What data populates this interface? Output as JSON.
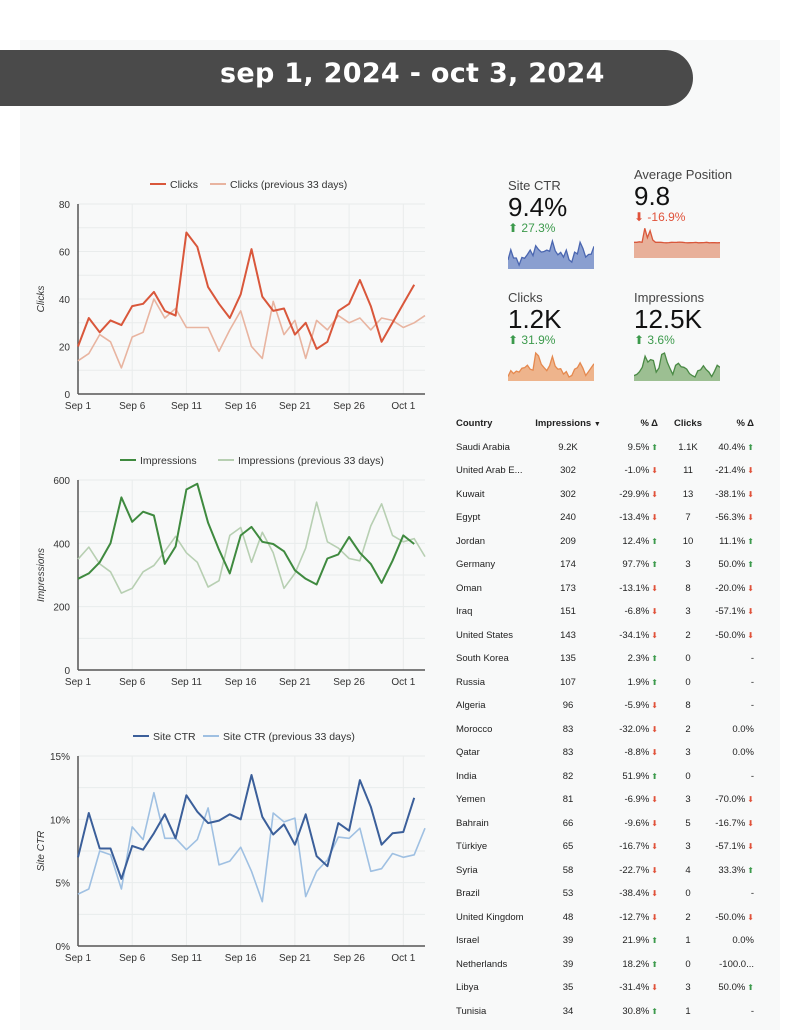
{
  "header": {
    "title": "sep 1, 2024 - oct 3, 2024"
  },
  "colors": {
    "clicks": "#d9573b",
    "clicks_prev": "#e8b4a0",
    "impressions": "#3f8a3f",
    "impressions_prev": "#b7cfb2",
    "ctr": "#3b5f9a",
    "ctr_prev": "#9fc0e2",
    "up": "#3c9a4c",
    "down": "#e0523a"
  },
  "scorecards": [
    {
      "label": "Site CTR",
      "value": "9.4%",
      "delta": "27.3%",
      "dir": "up",
      "line": "#4a66b0",
      "fill": "#8a9fd0"
    },
    {
      "label": "Average Position",
      "value": "9.8",
      "delta": "-16.9%",
      "dir": "down",
      "line": "#d9573b",
      "fill": "#e8b09a",
      "spark": [
        10,
        10,
        10.5,
        10,
        22,
        14,
        20,
        12,
        10,
        10,
        10,
        9.8,
        9.6,
        9.8,
        10,
        9.9,
        10,
        10.2,
        10,
        9.8,
        9.6,
        9.7,
        9.8,
        9.9,
        9.6,
        9.7,
        9.8,
        10,
        9.6,
        9.8,
        9.7,
        9.6,
        9.7
      ]
    },
    {
      "label": "Clicks",
      "value": "1.2K",
      "delta": "31.9%",
      "dir": "up",
      "line": "#e5894f",
      "fill": "#eeb48c"
    },
    {
      "label": "Impressions",
      "value": "12.5K",
      "delta": "3.6%",
      "dir": "up",
      "line": "#4a8a45",
      "fill": "#9cbf92"
    }
  ],
  "chart_data": [
    {
      "type": "line",
      "ylabel": "Clicks",
      "ylim": [
        0,
        80
      ],
      "yticks": [
        "0",
        "20",
        "40",
        "60",
        "80"
      ],
      "xticks": [
        "Sep 1",
        "Sep 6",
        "Sep 11",
        "Sep 16",
        "Sep 21",
        "Sep 26",
        "Oct 1"
      ],
      "x_start": "2024-09-01",
      "x_end": "2024-10-03",
      "grid": true,
      "legend": "top",
      "series": [
        {
          "name": "Clicks",
          "values": [
            20,
            32,
            26,
            31,
            29,
            37,
            38,
            43,
            35,
            33,
            68,
            62,
            45,
            38,
            32,
            42,
            61,
            41,
            35,
            36,
            25,
            30,
            19,
            22,
            35,
            38,
            48,
            37,
            22,
            30,
            38,
            46
          ]
        },
        {
          "name": "Clicks (previous 33 days)",
          "values": [
            14,
            17,
            25,
            22,
            11,
            24,
            26,
            40,
            32,
            36,
            28,
            28,
            28,
            18,
            27,
            35,
            20,
            15,
            39,
            25,
            31,
            15,
            31,
            27,
            33,
            30,
            32,
            27,
            32,
            31,
            28,
            30,
            33
          ]
        }
      ]
    },
    {
      "type": "line",
      "ylabel": "Impressions",
      "ylim": [
        0,
        600
      ],
      "yticks": [
        "0",
        "200",
        "400",
        "600"
      ],
      "xticks": [
        "Sep 1",
        "Sep 6",
        "Sep 11",
        "Sep 16",
        "Sep 21",
        "Sep 26",
        "Oct 1"
      ],
      "x_start": "2024-09-01",
      "x_end": "2024-10-03",
      "grid": true,
      "legend": "top",
      "series": [
        {
          "name": "Impressions",
          "values": [
            288,
            305,
            340,
            400,
            545,
            468,
            500,
            488,
            335,
            390,
            570,
            588,
            465,
            380,
            305,
            425,
            452,
            405,
            398,
            375,
            315,
            288,
            270,
            352,
            365,
            420,
            370,
            335,
            275,
            345,
            425,
            398
          ]
        },
        {
          "name": "Impressions (previous 33 days)",
          "values": [
            350,
            388,
            335,
            310,
            243,
            258,
            310,
            330,
            375,
            422,
            370,
            340,
            262,
            282,
            425,
            450,
            340,
            435,
            370,
            258,
            305,
            385,
            530,
            405,
            385,
            352,
            345,
            455,
            525,
            425,
            405,
            415,
            358
          ]
        }
      ]
    },
    {
      "type": "line",
      "ylabel": "Site CTR",
      "ylim": [
        0,
        15
      ],
      "yticks": [
        "0%",
        "5%",
        "10%",
        "15%"
      ],
      "xticks": [
        "Sep 1",
        "Sep 6",
        "Sep 11",
        "Sep 16",
        "Sep 21",
        "Sep 26",
        "Oct 1"
      ],
      "x_start": "2024-09-01",
      "x_end": "2024-10-03",
      "grid": true,
      "legend": "top",
      "series": [
        {
          "name": "Site CTR",
          "values": [
            7.0,
            10.5,
            7.7,
            7.7,
            5.3,
            7.9,
            7.6,
            8.9,
            10.4,
            8.5,
            11.9,
            10.6,
            9.7,
            9.9,
            10.4,
            10.0,
            13.5,
            10.2,
            8.8,
            9.6,
            8.0,
            10.4,
            7.1,
            6.3,
            9.7,
            9.1,
            13.1,
            11.0,
            8.0,
            8.9,
            9.0,
            11.7
          ]
        },
        {
          "name": "Site CTR (previous 33 days)",
          "values": [
            4.1,
            4.5,
            7.5,
            7.2,
            4.5,
            9.4,
            8.4,
            12.1,
            8.5,
            8.5,
            7.6,
            8.4,
            10.9,
            6.4,
            6.7,
            7.8,
            5.9,
            3.5,
            10.5,
            9.8,
            10.1,
            3.9,
            5.9,
            6.8,
            8.6,
            8.5,
            9.3,
            5.9,
            6.1,
            7.3,
            7.0,
            7.2,
            9.3
          ]
        }
      ]
    }
  ],
  "table": {
    "headers": [
      "Country",
      "Impressions",
      "% Δ",
      "Clicks",
      "% Δ"
    ],
    "sort_icon": "sort-desc-icon",
    "rows": [
      [
        "Saudi Arabia",
        "9.2K",
        "9.5%",
        "up",
        "1.1K",
        "40.4%",
        "up"
      ],
      [
        "United Arab E...",
        "302",
        "-1.0%",
        "down",
        "11",
        "-21.4%",
        "down"
      ],
      [
        "Kuwait",
        "302",
        "-29.9%",
        "down",
        "13",
        "-38.1%",
        "down"
      ],
      [
        "Egypt",
        "240",
        "-13.4%",
        "down",
        "7",
        "-56.3%",
        "down"
      ],
      [
        "Jordan",
        "209",
        "12.4%",
        "up",
        "10",
        "11.1%",
        "up"
      ],
      [
        "Germany",
        "174",
        "97.7%",
        "up",
        "3",
        "50.0%",
        "up"
      ],
      [
        "Oman",
        "173",
        "-13.1%",
        "down",
        "8",
        "-20.0%",
        "down"
      ],
      [
        "Iraq",
        "151",
        "-6.8%",
        "down",
        "3",
        "-57.1%",
        "down"
      ],
      [
        "United States",
        "143",
        "-34.1%",
        "down",
        "2",
        "-50.0%",
        "down"
      ],
      [
        "South Korea",
        "135",
        "2.3%",
        "up",
        "0",
        "-",
        ""
      ],
      [
        "Russia",
        "107",
        "1.9%",
        "up",
        "0",
        "-",
        ""
      ],
      [
        "Algeria",
        "96",
        "-5.9%",
        "down",
        "8",
        "-",
        ""
      ],
      [
        "Morocco",
        "83",
        "-32.0%",
        "down",
        "2",
        "0.0%",
        ""
      ],
      [
        "Qatar",
        "83",
        "-8.8%",
        "down",
        "3",
        "0.0%",
        ""
      ],
      [
        "India",
        "82",
        "51.9%",
        "up",
        "0",
        "-",
        ""
      ],
      [
        "Yemen",
        "81",
        "-6.9%",
        "down",
        "3",
        "-70.0%",
        "down"
      ],
      [
        "Bahrain",
        "66",
        "-9.6%",
        "down",
        "5",
        "-16.7%",
        "down"
      ],
      [
        "Türkiye",
        "65",
        "-16.7%",
        "down",
        "3",
        "-57.1%",
        "down"
      ],
      [
        "Syria",
        "58",
        "-22.7%",
        "down",
        "4",
        "33.3%",
        "up"
      ],
      [
        "Brazil",
        "53",
        "-38.4%",
        "down",
        "0",
        "-",
        ""
      ],
      [
        "United Kingdom",
        "48",
        "-12.7%",
        "down",
        "2",
        "-50.0%",
        "down"
      ],
      [
        "Israel",
        "39",
        "21.9%",
        "up",
        "1",
        "0.0%",
        ""
      ],
      [
        "Netherlands",
        "39",
        "18.2%",
        "up",
        "0",
        "-100.0...",
        ""
      ],
      [
        "Libya",
        "35",
        "-31.4%",
        "down",
        "3",
        "50.0%",
        "up"
      ],
      [
        "Tunisia",
        "34",
        "30.8%",
        "up",
        "1",
        "-",
        ""
      ]
    ]
  }
}
